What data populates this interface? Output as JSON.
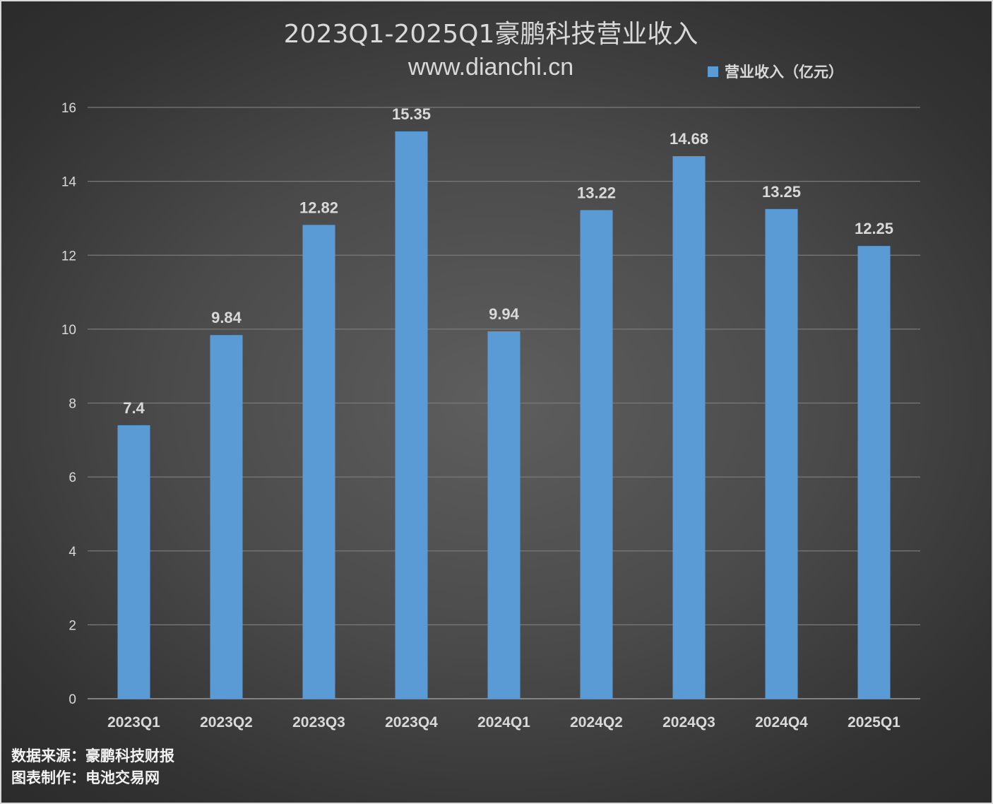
{
  "chart_data": {
    "type": "bar",
    "title": "2023Q1-2025Q1豪鹏科技营业收入",
    "subtitle": "www.dianchi.cn",
    "categories": [
      "2023Q1",
      "2023Q2",
      "2023Q3",
      "2023Q4",
      "2024Q1",
      "2024Q2",
      "2024Q3",
      "2024Q4",
      "2025Q1"
    ],
    "series": [
      {
        "name": "营业收入（亿元）",
        "values": [
          7.4,
          9.84,
          12.82,
          15.35,
          9.94,
          13.22,
          14.68,
          13.25,
          12.25
        ],
        "color": "#5b9bd5"
      }
    ],
    "data_labels": [
      "7.4",
      "9.84",
      "12.82",
      "15.35",
      "9.94",
      "13.22",
      "14.68",
      "13.25",
      "12.25"
    ],
    "y_ticks": [
      "0",
      "2",
      "4",
      "6",
      "8",
      "10",
      "12",
      "14",
      "16"
    ],
    "ylim": [
      0,
      16
    ],
    "xlabel": "",
    "ylabel": "",
    "grid": true,
    "legend_position": "top-right",
    "background_color": "#4a4a4a",
    "text_color": "#d9d9d9"
  },
  "footer": {
    "source": "数据来源：豪鹏科技财报",
    "maker": "图表制作：电池交易网"
  }
}
